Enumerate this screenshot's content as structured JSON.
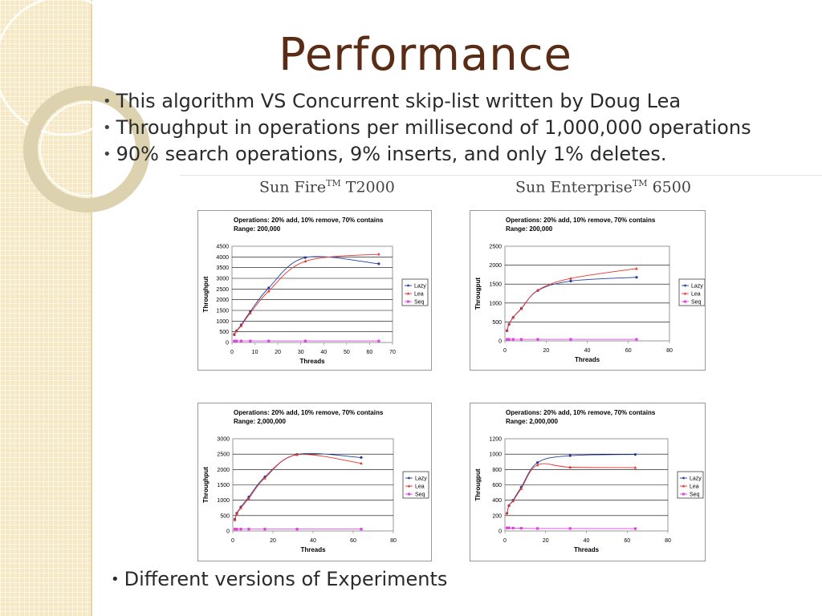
{
  "slide": {
    "title": "Performance",
    "bullets": [
      "This algorithm VS Concurrent skip-list written by Doug Lea",
      "Throughput in operations per millisecond of 1,000,000 operations",
      "90% search operations, 9% inserts, and only 1% deletes."
    ],
    "machines": [
      {
        "name": "Sun Fire",
        "tm": "TM",
        "model": "T2000"
      },
      {
        "name": "Sun Enterprise",
        "tm": "TM",
        "model": "6500"
      }
    ],
    "footer": "Different versions of Experiments"
  },
  "colors": {
    "title": "#5b2c15",
    "lazy": "#1f3f9f",
    "lea": "#e8332a",
    "seq": "#e040e0"
  },
  "chart_data": [
    {
      "type": "line",
      "title": "Operations: 20% add, 10% remove, 70% contains",
      "subtitle": "Range: 200,000",
      "xlabel": "Threads",
      "ylabel": "Throughput",
      "xlim": [
        0,
        70
      ],
      "ylim": [
        0,
        4500
      ],
      "xticks": [
        0,
        10,
        20,
        30,
        40,
        50,
        60,
        70
      ],
      "yticks": [
        0,
        500,
        1000,
        1500,
        2000,
        2500,
        3000,
        3500,
        4000,
        4500
      ],
      "legend": "right",
      "grid": "horizontal",
      "series": [
        {
          "name": "Lazy",
          "x": [
            1,
            2,
            4,
            8,
            16,
            32,
            64
          ],
          "y": [
            380,
            550,
            820,
            1450,
            2550,
            3970,
            3680
          ]
        },
        {
          "name": "Lea",
          "x": [
            1,
            2,
            4,
            8,
            16,
            32,
            64
          ],
          "y": [
            360,
            530,
            780,
            1380,
            2400,
            3800,
            4130
          ]
        },
        {
          "name": "Seq",
          "x": [
            1,
            2,
            4,
            8,
            16,
            32,
            64
          ],
          "y": [
            70,
            70,
            70,
            70,
            70,
            70,
            70
          ]
        }
      ]
    },
    {
      "type": "line",
      "title": "Operations: 20% add, 10% remove, 70% contains",
      "subtitle": "Range: 200,000",
      "xlabel": "Threads",
      "ylabel": "Througput",
      "xlim": [
        0,
        80
      ],
      "ylim": [
        0,
        2500
      ],
      "xticks": [
        0,
        20,
        40,
        60,
        80
      ],
      "yticks": [
        0,
        500,
        1000,
        1500,
        2000,
        2500
      ],
      "legend": "right",
      "grid": "horizontal",
      "series": [
        {
          "name": "Lazy",
          "x": [
            1,
            2,
            4,
            8,
            16,
            32,
            64
          ],
          "y": [
            270,
            440,
            620,
            860,
            1330,
            1580,
            1680
          ]
        },
        {
          "name": "Lea",
          "x": [
            1,
            2,
            4,
            8,
            16,
            32,
            64
          ],
          "y": [
            270,
            440,
            620,
            850,
            1340,
            1650,
            1910
          ]
        },
        {
          "name": "Seq",
          "x": [
            1,
            2,
            4,
            8,
            16,
            32,
            64
          ],
          "y": [
            40,
            40,
            40,
            40,
            40,
            40,
            40
          ]
        }
      ]
    },
    {
      "type": "line",
      "title": "Operations: 20% add, 10% remove, 70% contains",
      "subtitle": "Range: 2,000,000",
      "xlabel": "Threads",
      "ylabel": "Throughput",
      "xlim": [
        0,
        80
      ],
      "ylim": [
        0,
        3000
      ],
      "xticks": [
        0,
        20,
        40,
        60,
        80
      ],
      "yticks": [
        0,
        500,
        1000,
        1500,
        2000,
        2500,
        3000
      ],
      "legend": "right",
      "grid": "horizontal",
      "series": [
        {
          "name": "Lazy",
          "x": [
            1,
            2,
            4,
            8,
            16,
            32,
            64
          ],
          "y": [
            380,
            580,
            780,
            1110,
            1760,
            2490,
            2390
          ]
        },
        {
          "name": "Lea",
          "x": [
            1,
            2,
            4,
            8,
            16,
            32,
            64
          ],
          "y": [
            360,
            560,
            750,
            1060,
            1720,
            2480,
            2200
          ]
        },
        {
          "name": "Seq",
          "x": [
            1,
            2,
            4,
            8,
            16,
            32,
            64
          ],
          "y": [
            60,
            60,
            60,
            60,
            60,
            60,
            60
          ]
        }
      ]
    },
    {
      "type": "line",
      "title": "Operations: 20% add, 10% remove, 70% contains",
      "subtitle": "Range: 2,000,000",
      "xlabel": "Threads",
      "ylabel": "Througput",
      "xlim": [
        0,
        80
      ],
      "ylim": [
        0,
        1200
      ],
      "xticks": [
        0,
        20,
        40,
        60,
        80
      ],
      "yticks": [
        0,
        200,
        400,
        600,
        800,
        1000,
        1200
      ],
      "legend": "right",
      "grid": "horizontal",
      "series": [
        {
          "name": "Lazy",
          "x": [
            1,
            2,
            4,
            8,
            16,
            32,
            64
          ],
          "y": [
            230,
            330,
            400,
            570,
            890,
            980,
            995
          ]
        },
        {
          "name": "Lea",
          "x": [
            1,
            2,
            4,
            8,
            16,
            32,
            64
          ],
          "y": [
            230,
            330,
            390,
            550,
            860,
            830,
            825
          ]
        },
        {
          "name": "Seq",
          "x": [
            1,
            2,
            4,
            8,
            16,
            32,
            64
          ],
          "y": [
            40,
            40,
            38,
            35,
            32,
            32,
            30
          ]
        }
      ]
    }
  ]
}
